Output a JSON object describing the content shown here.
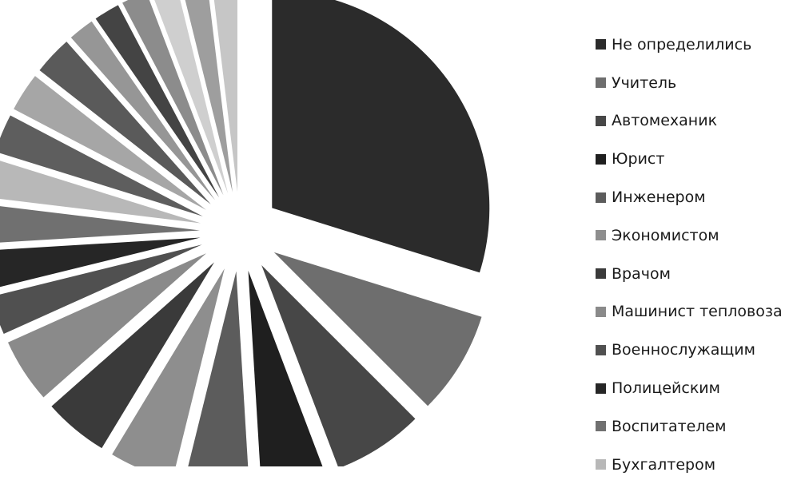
{
  "chart_data": {
    "type": "pie",
    "exploded": true,
    "legend_position": "right",
    "slices": [
      {
        "label": "Не определились",
        "value": 31,
        "color": "#2b2b2b"
      },
      {
        "label": "Учитель",
        "value": 8,
        "color": "#6e6e6e"
      },
      {
        "label": "Автомеханик",
        "value": 7,
        "color": "#474747"
      },
      {
        "label": "Юрист",
        "value": 5,
        "color": "#1f1f1f"
      },
      {
        "label": "Инженером",
        "value": 5,
        "color": "#5c5c5c"
      },
      {
        "label": "Экономистом",
        "value": 5,
        "color": "#8e8e8e"
      },
      {
        "label": "Врачом",
        "value": 5,
        "color": "#3a3a3a"
      },
      {
        "label": "Машинист тепловоза",
        "value": 5,
        "color": "#8a8a8a"
      },
      {
        "label": "Военнослужащим",
        "value": 3,
        "color": "#505050"
      },
      {
        "label": "Полицейским",
        "value": 3,
        "color": "#262626"
      },
      {
        "label": "Воспитателем",
        "value": 3,
        "color": "#707070"
      },
      {
        "label": "Бухгалтером",
        "value": 3,
        "color": "#b8b8b8"
      },
      {
        "label": "",
        "value": 3,
        "color": "#5e5e5e"
      },
      {
        "label": "",
        "value": 3,
        "color": "#a6a6a6"
      },
      {
        "label": "",
        "value": 3,
        "color": "#5a5a5a"
      },
      {
        "label": "",
        "value": 2,
        "color": "#969696"
      },
      {
        "label": "",
        "value": 2,
        "color": "#444444"
      },
      {
        "label": "",
        "value": 2,
        "color": "#8c8c8c"
      },
      {
        "label": "",
        "value": 2,
        "color": "#cfcfcf"
      },
      {
        "label": "",
        "value": 2,
        "color": "#9e9e9e"
      },
      {
        "label": "",
        "value": 2,
        "color": "#c6c6c6"
      }
    ]
  }
}
